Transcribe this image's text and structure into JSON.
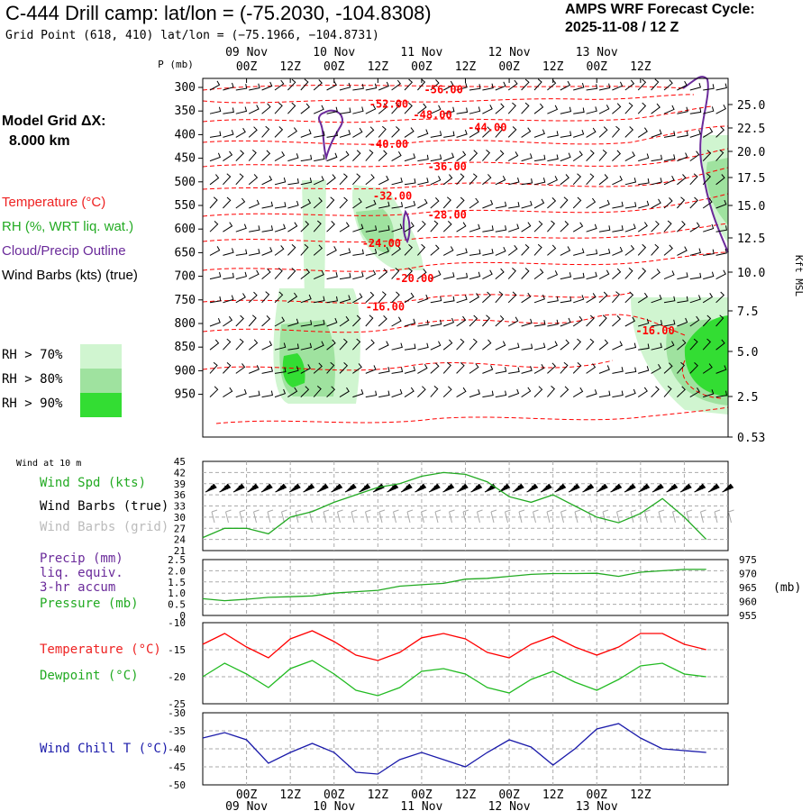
{
  "header": {
    "title": "C-444 Drill camp:  lat/lon = (-75.2030, -104.8308)",
    "subtitle": "Grid Point (618, 410) lat/lon = (−75.1966, −104.8731)",
    "cycle_line1": "AMPS WRF Forecast Cycle:",
    "cycle_line2": "2025-11-08 / 12  Z",
    "model_dx_line1": "Model Grid ΔX:",
    "model_dx_line2": "8.000 km"
  },
  "legend": {
    "temperature": "Temperature (°C)",
    "rh": "RH (%, WRT liq. wat.)",
    "cloud": "Cloud/Precip Outline",
    "wind": "Wind Barbs (kts) (true)",
    "rh70": "RH > 70%",
    "rh80": "RH > 80%",
    "rh90": "RH > 90%"
  },
  "colors": {
    "temperature": "#ff0000",
    "rh": "#22aa22",
    "cloud": "#6a2a9a",
    "wind": "#000000",
    "wind_grid": "#aaaaaa",
    "rh70": "#d0f5d0",
    "rh80": "#9fe29f",
    "rh90": "#33dd33",
    "precip": "#6a2a9a",
    "pressure": "#22aa22",
    "dewpoint": "#22bb22",
    "windchill": "#1a1aaa"
  },
  "chart_data": [
    {
      "type": "heatmap",
      "name": "cross_section",
      "ylabel": "P (mb)",
      "y2label": "Kft MSL",
      "y_ticks": [
        "300",
        "350",
        "400",
        "450",
        "500",
        "550",
        "600",
        "650",
        "700",
        "750",
        "800",
        "850",
        "900",
        "950"
      ],
      "y2_ticks": [
        "25.0",
        "22.5",
        "20.0",
        "17.5",
        "15.0",
        "12.5",
        "10.0",
        "7.5",
        "5.0",
        "2.5",
        "0.53"
      ],
      "x_tick_labels": [
        "00Z",
        "12Z",
        "00Z",
        "12Z",
        "00Z",
        "12Z",
        "00Z",
        "12Z",
        "00Z",
        "12Z"
      ],
      "date_labels": [
        "09 Nov",
        "10 Nov",
        "11 Nov",
        "12 Nov",
        "13 Nov"
      ],
      "temperature_contour_labels": [
        {
          "value": "-56.00",
          "time_h": 66,
          "p": 305
        },
        {
          "value": "-52.00",
          "time_h": 51,
          "p": 335
        },
        {
          "value": "-48.00",
          "time_h": 63,
          "p": 358
        },
        {
          "value": "-44.00",
          "time_h": 78,
          "p": 385
        },
        {
          "value": "-40.00",
          "time_h": 51,
          "p": 420
        },
        {
          "value": "-36.00",
          "time_h": 67,
          "p": 468
        },
        {
          "value": "-32.00",
          "time_h": 52,
          "p": 530
        },
        {
          "value": "-28.00",
          "time_h": 67,
          "p": 570
        },
        {
          "value": "-24.00",
          "time_h": 49,
          "p": 630
        },
        {
          "value": "-20.00",
          "time_h": 58,
          "p": 705
        },
        {
          "value": "-16.00",
          "time_h": 50,
          "p": 765
        },
        {
          "value": "-16.00",
          "time_h": 124,
          "p": 815
        }
      ]
    },
    {
      "type": "line",
      "name": "wind_10m",
      "panel_label": "Wind at 10 m",
      "series_labels": [
        "Wind Spd (kts)",
        "Wind Barbs (true)",
        "Wind Barbs (grid)"
      ],
      "y_ticks": [
        "45",
        "42",
        "39",
        "36",
        "33",
        "30",
        "27",
        "24",
        "21"
      ],
      "ylim": [
        21,
        45
      ],
      "x": [
        0,
        6,
        12,
        18,
        24,
        30,
        36,
        42,
        48,
        54,
        60,
        66,
        72,
        78,
        84,
        90,
        96,
        102,
        108,
        114,
        120,
        126,
        132,
        138
      ],
      "values": [
        24.5,
        27,
        27,
        25.5,
        30,
        31.5,
        34,
        36,
        38,
        39,
        41,
        42,
        41.5,
        39.5,
        35.5,
        34,
        36,
        33,
        30,
        28.5,
        31,
        35,
        30,
        24
      ]
    },
    {
      "type": "line",
      "name": "precip_pressure",
      "series_labels": [
        "Precip (mm)",
        "liq. equiv.",
        "3-hr accum",
        "Pressure (mb)"
      ],
      "y_ticks": [
        "2.5",
        "2.0",
        "1.5",
        "1.0",
        "0.5",
        "0"
      ],
      "y2_ticks": [
        "975",
        "970",
        "965",
        "960",
        "955"
      ],
      "y2label": "(mb)",
      "ylim": [
        0,
        2.5
      ],
      "y2lim": [
        955,
        975
      ],
      "x": [
        0,
        6,
        12,
        18,
        24,
        30,
        36,
        42,
        48,
        54,
        60,
        66,
        72,
        78,
        84,
        90,
        96,
        102,
        108,
        114,
        120,
        126,
        132,
        138
      ],
      "pressure": [
        961,
        960.3,
        960.8,
        961.5,
        961.7,
        962,
        963,
        963.5,
        964,
        965.5,
        966,
        966.5,
        968,
        968.3,
        969,
        969.7,
        970,
        970,
        970.1,
        969,
        970.5,
        971,
        971.5,
        971.5
      ]
    },
    {
      "type": "line",
      "name": "temp_dewpoint",
      "series_labels": [
        "Temperature (°C)",
        "Dewpoint (°C)"
      ],
      "y_ticks": [
        "-10",
        "-15",
        "-20",
        "-25"
      ],
      "ylim": [
        -25,
        -10
      ],
      "x": [
        0,
        6,
        12,
        18,
        24,
        30,
        36,
        42,
        48,
        54,
        60,
        66,
        72,
        78,
        84,
        90,
        96,
        102,
        108,
        114,
        120,
        126,
        132,
        138
      ],
      "temperature": [
        -14,
        -12,
        -14.5,
        -16.5,
        -13,
        -11.5,
        -13.5,
        -16,
        -17,
        -15.5,
        -12.8,
        -12,
        -13,
        -15.5,
        -16.5,
        -14,
        -12.5,
        -14.5,
        -16,
        -14.5,
        -12,
        -12,
        -14,
        -15
      ],
      "dewpoint": [
        -20,
        -17.5,
        -19.5,
        -22,
        -18.5,
        -17,
        -19.5,
        -22.5,
        -23.5,
        -22,
        -19,
        -18.5,
        -19.5,
        -22,
        -23,
        -20.5,
        -19,
        -21,
        -22.5,
        -20.5,
        -18,
        -17.5,
        -19.5,
        -20
      ]
    },
    {
      "type": "line",
      "name": "wind_chill",
      "series_labels": [
        "Wind Chill T (°C)"
      ],
      "y_ticks": [
        "-30",
        "-35",
        "-40",
        "-45",
        "-50"
      ],
      "ylim": [
        -50,
        -30
      ],
      "x": [
        0,
        6,
        12,
        18,
        24,
        30,
        36,
        42,
        48,
        54,
        60,
        66,
        72,
        78,
        84,
        90,
        96,
        102,
        108,
        114,
        120,
        126,
        132,
        138
      ],
      "values": [
        -37,
        -35.5,
        -37.5,
        -44,
        -41,
        -38.5,
        -41,
        -46.5,
        -47,
        -43,
        -41,
        -43,
        -45,
        -41,
        -37.5,
        -39.5,
        -44.5,
        -40,
        -34.5,
        -33,
        -37,
        -40,
        -40.5,
        -41
      ]
    }
  ]
}
